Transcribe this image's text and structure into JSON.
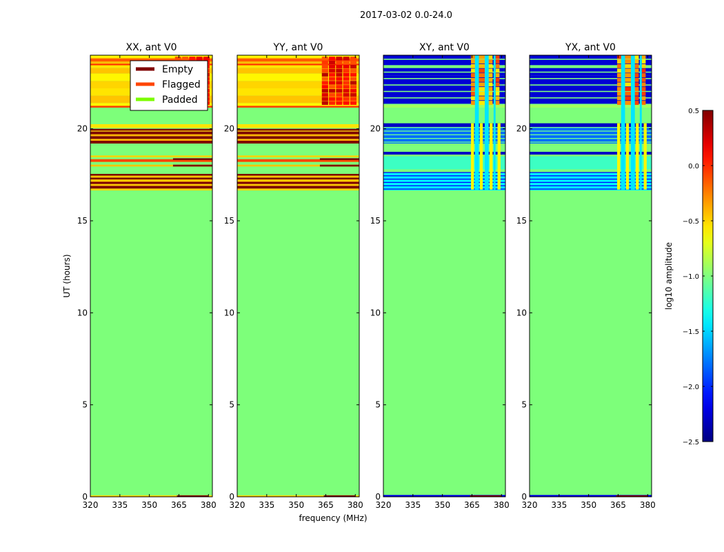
{
  "figure": {
    "suptitle": "2017-03-02 0.0-24.0",
    "xlabel": "frequency (MHz)",
    "ylabel": "UT (hours)"
  },
  "colors": {
    "padded": "#7dff7a",
    "empty": "#7f0000",
    "flagged": "#ff4500",
    "legend_padded": "#7cfc00"
  },
  "chart_data": [
    {
      "type": "heatmap",
      "title": "XX, ant V0",
      "xlabel": "frequency (MHz)",
      "ylabel": "UT (hours)",
      "xlim": [
        320,
        382
      ],
      "ylim": [
        0,
        24
      ],
      "xticks": [
        320,
        335,
        350,
        365,
        380
      ],
      "yticks": [
        0,
        5,
        10,
        15,
        20
      ],
      "pattern": "copol",
      "legend": {
        "location": "upper-right",
        "entries": [
          {
            "label": "Empty",
            "color": "#7f0000"
          },
          {
            "label": "Flagged",
            "color": "#ff4500"
          },
          {
            "label": "Padded",
            "color": "#7cfc00"
          }
        ]
      }
    },
    {
      "type": "heatmap",
      "title": "YY, ant V0",
      "xlim": [
        320,
        382
      ],
      "ylim": [
        0,
        24
      ],
      "xticks": [
        320,
        335,
        350,
        365,
        380
      ],
      "yticks": [
        0,
        5,
        10,
        15,
        20
      ],
      "pattern": "copol"
    },
    {
      "type": "heatmap",
      "title": "XY, ant V0",
      "xlim": [
        320,
        382
      ],
      "ylim": [
        0,
        24
      ],
      "xticks": [
        320,
        335,
        350,
        365,
        380
      ],
      "yticks": [
        0,
        5,
        10,
        15,
        20
      ],
      "pattern": "crosspol"
    },
    {
      "type": "heatmap",
      "title": "YX, ant V0",
      "xlim": [
        320,
        382
      ],
      "ylim": [
        0,
        24
      ],
      "xticks": [
        320,
        335,
        350,
        365,
        380
      ],
      "yticks": [
        0,
        5,
        10,
        15,
        20
      ],
      "pattern": "crosspol"
    }
  ],
  "colorbar": {
    "label": "log10 amplitude",
    "min": -2.5,
    "max": 0.5,
    "ticks": [
      0.5,
      0.0,
      -0.5,
      -1.0,
      -1.5,
      -2.0,
      -2.5
    ],
    "tick_labels": [
      "0.5",
      "0.0",
      "−0.5",
      "−1.0",
      "−1.5",
      "−2.0",
      "−2.5"
    ],
    "colormap": "jet"
  }
}
